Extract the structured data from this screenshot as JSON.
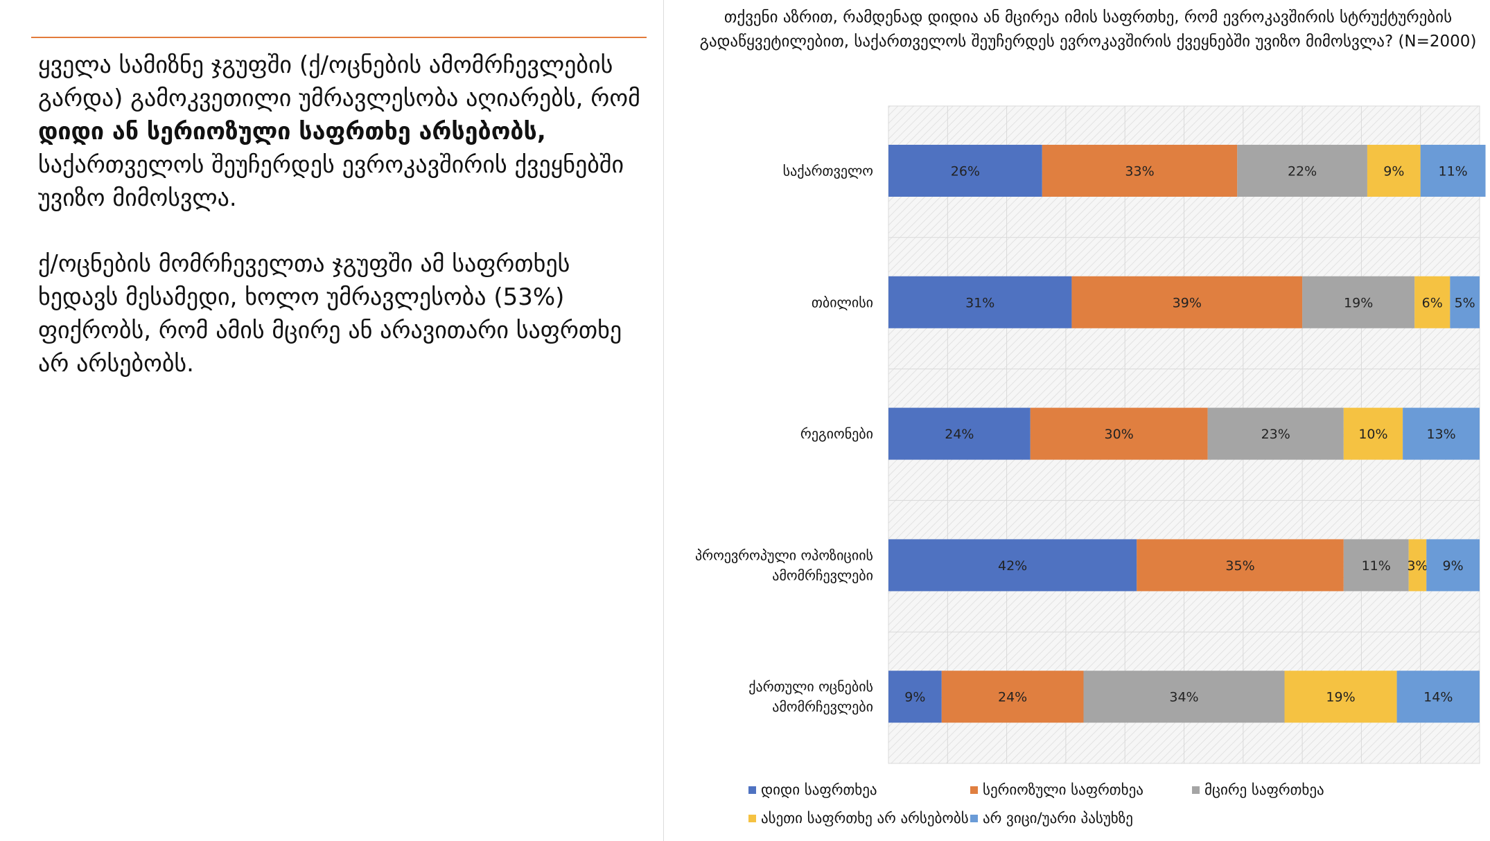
{
  "left_text": {
    "p1_part1": "ყველა სამიზნე ჯგუფში (ქ/ოცნების ამომრჩევლების გარდა) გამოკვეთილი უმრავლესობა აღიარებს, რომ  ",
    "p1_bold": "დიდი ან სერიოზული საფრთხე არსებობს,",
    "p1_part2": " საქართველოს შეუჩერდეს ევროკავშირის ქვეყნებში უვიზო მიმოსვლა.",
    "p2": "ქ/ოცნების მომრჩეველთა ჯგუფში ამ საფრთხეს ხედავს მესამედი, ხოლო უმრავლესობა (53%) ფიქრობს, რომ ამის მცირე ან არავითარი საფრთხე არ არსებობს."
  },
  "colors": {
    "accent_line": "#e27b3a"
  },
  "chart_data": {
    "type": "bar",
    "orientation": "horizontal",
    "stacked": true,
    "percent": true,
    "title": "თქვენი აზრით, რამდენად დიდია ან მცირეა იმის საფრთხე, რომ ევროკავშირის სტრუქტურების გადაწყვეტილებით, საქართველოს შეუჩერდეს ევროკავშირის ქვეყნებში უვიზო მიმოსვლა? (N=2000)",
    "categories": [
      [
        "საქართველო"
      ],
      [
        "თბილისი"
      ],
      [
        "რეგიონები"
      ],
      [
        "პროევროპული ოპოზიციის",
        "ამომრჩევლები"
      ],
      [
        "ქართული ოცნების",
        "ამომრჩევლები"
      ]
    ],
    "series": [
      {
        "name": "დიდი საფრთხეა",
        "color": "#4f72c1",
        "values": [
          26,
          31,
          24,
          42,
          9
        ]
      },
      {
        "name": "სერიოზული საფრთხეა",
        "color": "#e07f40",
        "values": [
          33,
          39,
          30,
          35,
          24
        ]
      },
      {
        "name": "მცირე საფრთხეა",
        "color": "#a5a5a5",
        "values": [
          22,
          19,
          23,
          11,
          34
        ]
      },
      {
        "name": "ასეთი საფრთხე არ არსებობს",
        "color": "#f5c242",
        "values": [
          9,
          6,
          10,
          3,
          19
        ]
      },
      {
        "name": "არ ვიცი/უარი პასუხზე",
        "color": "#6a9bd7",
        "values": [
          11,
          5,
          13,
          9,
          14
        ]
      }
    ],
    "xlim": [
      0,
      100
    ],
    "grid": true,
    "legend_position": "bottom"
  }
}
